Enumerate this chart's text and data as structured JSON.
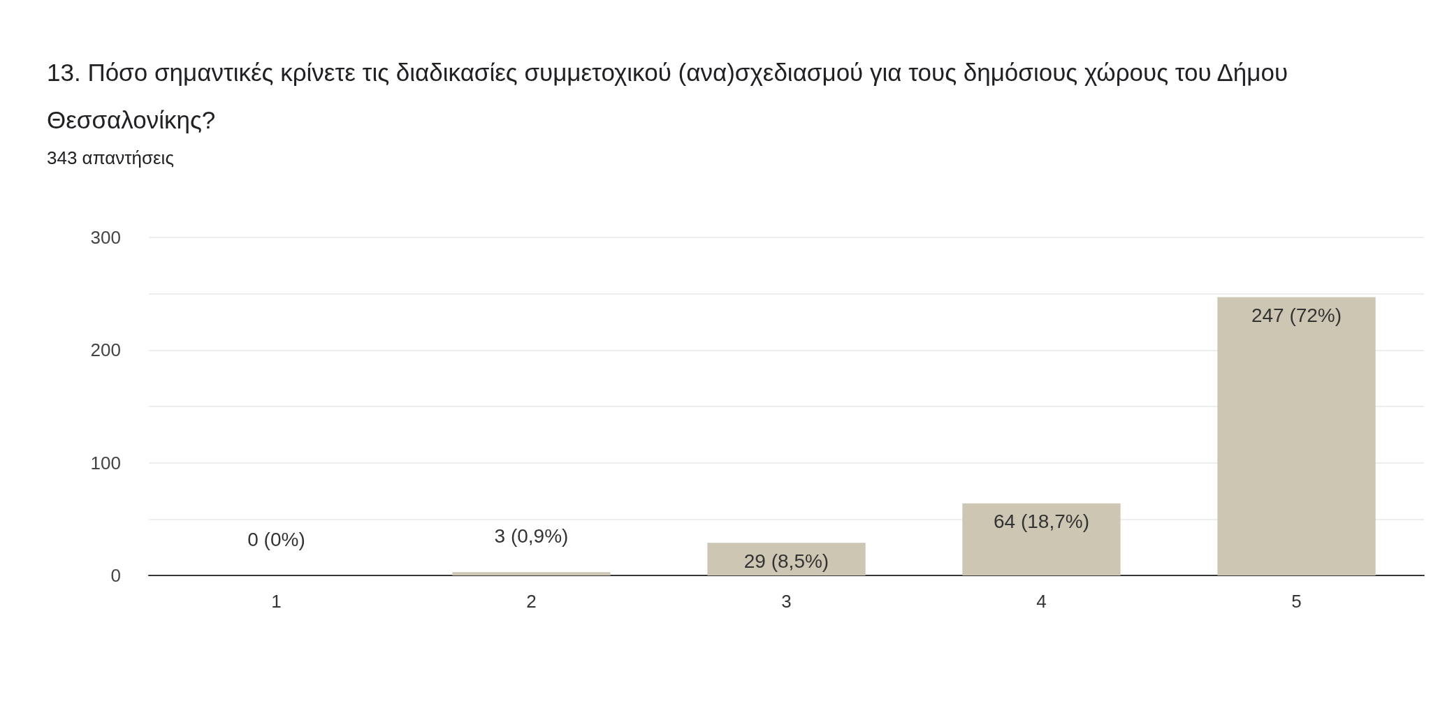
{
  "chart_data": {
    "type": "bar",
    "title": "13. Πόσο σημαντικές κρίνετε τις διαδικασίες συμμετοχικού (ανα)σχεδιασμού για τους δημόσιους χώρους του Δήμου Θεσσαλονίκης?",
    "subtitle": "343 απαντήσεις",
    "categories": [
      "1",
      "2",
      "3",
      "4",
      "5"
    ],
    "values": [
      0,
      3,
      29,
      64,
      247
    ],
    "value_labels": [
      "0 (0%)",
      "3 (0,9%)",
      "29 (8,5%)",
      "64 (18,7%)",
      "247 (72%)"
    ],
    "color": "#ccc6b3",
    "ylim": [
      0,
      300
    ],
    "yticks": [
      0,
      {
        "value": 50,
        "label": null
      },
      100,
      {
        "value": 150,
        "label": null
      },
      200,
      {
        "value": 250,
        "label": null
      },
      300
    ],
    "grid": true
  }
}
